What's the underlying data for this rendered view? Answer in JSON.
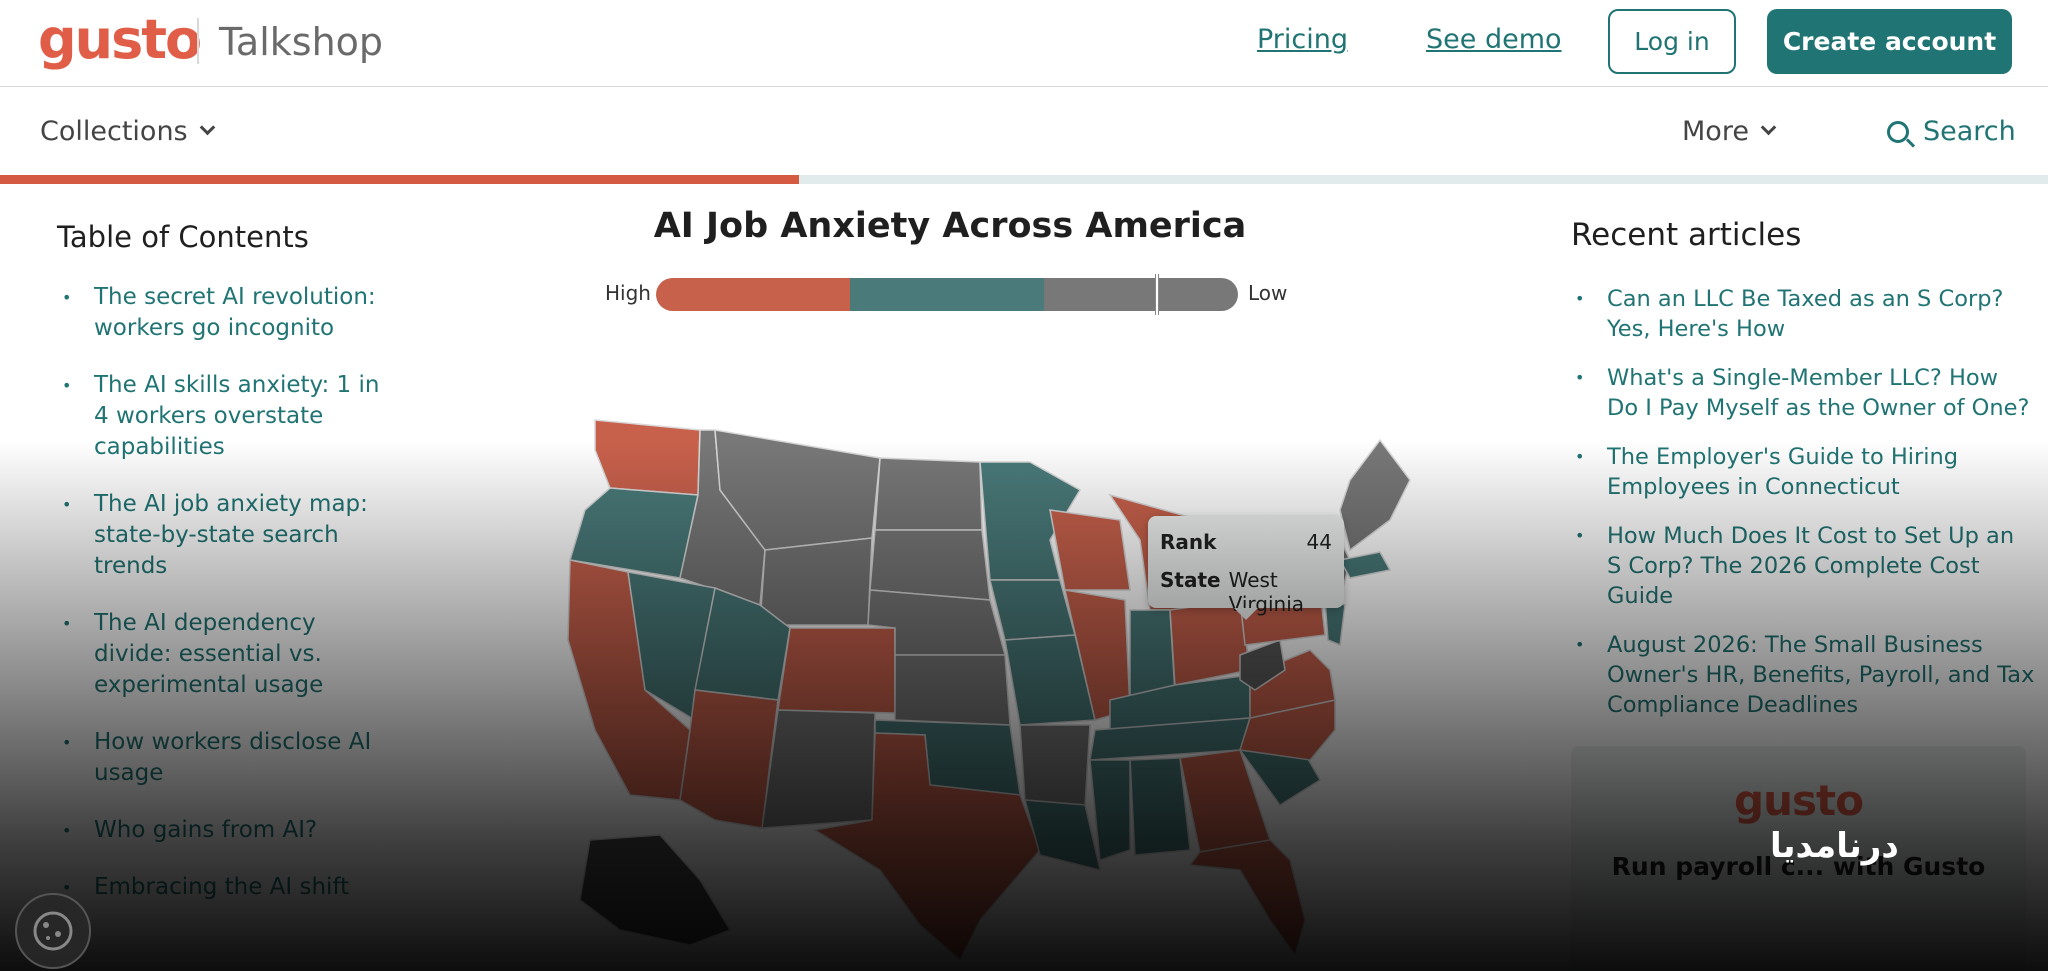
{
  "header": {
    "logo": "gusto",
    "subbrand": "Talkshop",
    "links": [
      "Pricing",
      "See demo"
    ],
    "login_label": "Log in",
    "create_account_label": "Create account"
  },
  "subnav": {
    "collections_label": "Collections",
    "more_label": "More",
    "search_label": "Search"
  },
  "reading_progress": 0.39,
  "toc": {
    "title": "Table of Contents",
    "items": [
      "The secret AI revolution: workers go incognito",
      "The AI skills anxiety: 1 in 4 workers overstate capabilities",
      "The AI job anxiety map: state-by-state search trends",
      "The AI dependency divide: essential vs. experimental usage",
      "How workers disclose AI usage",
      "Who gains from AI?",
      "Embracing the AI shift"
    ]
  },
  "map": {
    "title": "AI Job Anxiety Across America",
    "legend_high": "High",
    "legend_low": "Low",
    "colors": {
      "high": "#c8614c",
      "mid": "#4a7a7a",
      "low": "#787878"
    },
    "tooltip": {
      "rank_label": "Rank",
      "rank_value": "44",
      "state_label": "State",
      "state_value": "West Virginia"
    }
  },
  "recent": {
    "title": "Recent articles",
    "items": [
      "Can an LLC Be Taxed as an S Corp? Yes, Here's How",
      "What's a Single-Member LLC? How Do I Pay Myself as the Owner of One?",
      "The Employer's Guide to Hiring Employees in Connecticut",
      "How Much Does It Cost to Set Up an S Corp? The 2026 Complete Cost Guide",
      "August 2026: The Small Business Owner's HR, Benefits, Payroll, and Tax Compliance Deadlines"
    ]
  },
  "promo": {
    "logo": "gusto",
    "text": "Run payroll c... with Gusto"
  },
  "watermark": "درنامدیا"
}
